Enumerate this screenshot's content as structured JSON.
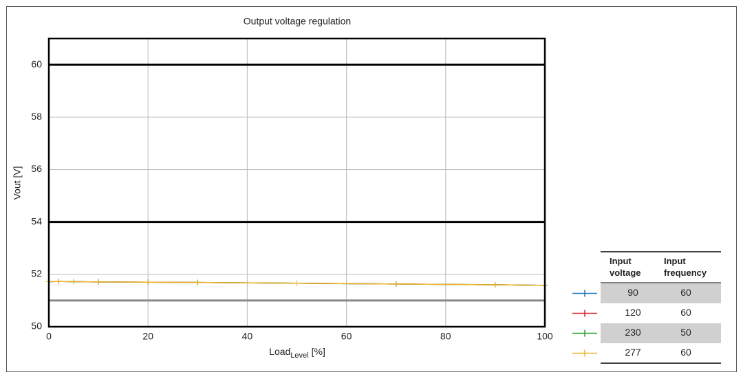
{
  "chart_data": {
    "type": "line",
    "title": "Output voltage regulation",
    "x_label": "Load",
    "x_label_sub": "Level",
    "x_label_unit": "[%]",
    "y_label": "Vout [V]",
    "x": [
      0,
      2,
      5,
      10,
      20,
      30,
      50,
      70,
      90,
      100
    ],
    "series": [
      {
        "color": "#1f77b4",
        "values": [
          51.72,
          51.73,
          51.72,
          51.71,
          51.7,
          51.69,
          51.66,
          51.63,
          51.6,
          51.58
        ]
      },
      {
        "color": "#d62728",
        "values": [
          51.72,
          51.73,
          51.72,
          51.71,
          51.7,
          51.69,
          51.66,
          51.63,
          51.6,
          51.58
        ]
      },
      {
        "color": "#2ca02c",
        "values": [
          51.72,
          51.73,
          51.72,
          51.71,
          51.7,
          51.69,
          51.66,
          51.63,
          51.6,
          51.58
        ]
      },
      {
        "color": "#f0b429",
        "values": [
          51.72,
          51.73,
          51.72,
          51.71,
          51.7,
          51.69,
          51.66,
          51.63,
          51.6,
          51.58
        ]
      }
    ],
    "hlines": [
      {
        "value": 60,
        "color": "#000000"
      },
      {
        "value": 54,
        "color": "#000000"
      },
      {
        "value": 51,
        "color": "#888888"
      }
    ],
    "xlim": [
      0,
      100
    ],
    "xticks": [
      0,
      20,
      40,
      60,
      80,
      100
    ],
    "ylim": [
      50,
      61
    ],
    "yticks": [
      50,
      52,
      54,
      56,
      58,
      60
    ],
    "grid": true,
    "legend_table": {
      "headers": [
        "Input voltage",
        "Input frequency"
      ],
      "rows": [
        [
          90,
          60
        ],
        [
          120,
          60
        ],
        [
          230,
          50
        ],
        [
          277,
          60
        ]
      ]
    }
  }
}
